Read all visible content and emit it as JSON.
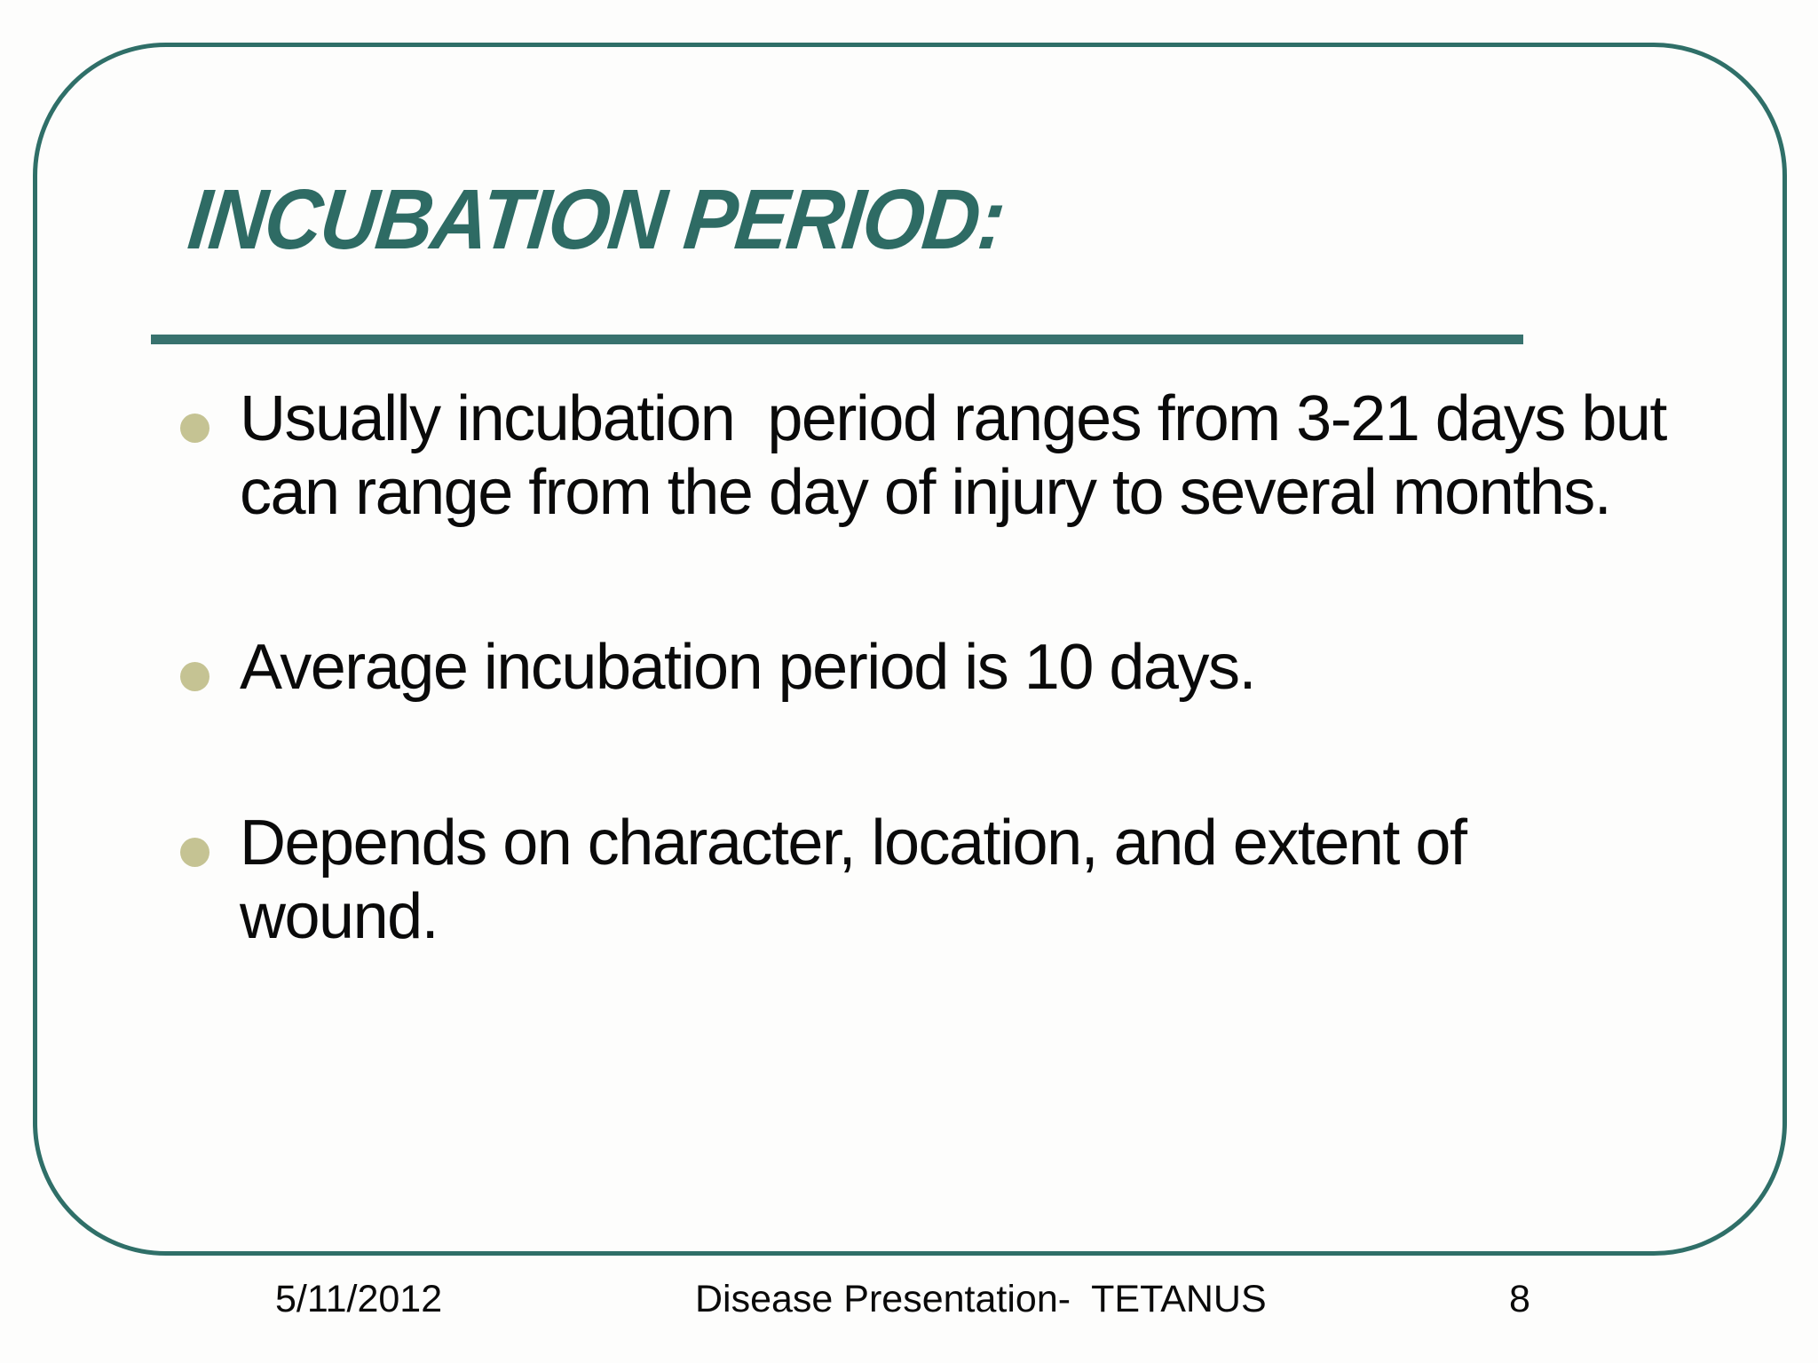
{
  "slide": {
    "title": "INCUBATION PERIOD:",
    "bullets": [
      {
        "lines": [
          "Usually incubation  period ranges from 3-21 days but",
          "can range from the day of injury to several months."
        ]
      },
      {
        "lines": [
          "Average incubation period is 10 days."
        ]
      },
      {
        "lines": [
          "Depends on character, location, and extent of",
          "wound."
        ]
      }
    ],
    "footer": {
      "date": "5/11/2012",
      "center": "Disease Presentation-  TETANUS",
      "page": "8"
    }
  },
  "colors": {
    "teal": "#2E6B64",
    "border-teal": "#2F6F68",
    "rule-teal": "#38726E",
    "bullet-olive": "#C5C393",
    "text-black": "#0a0a0a",
    "bg": "#fdfdfc"
  }
}
